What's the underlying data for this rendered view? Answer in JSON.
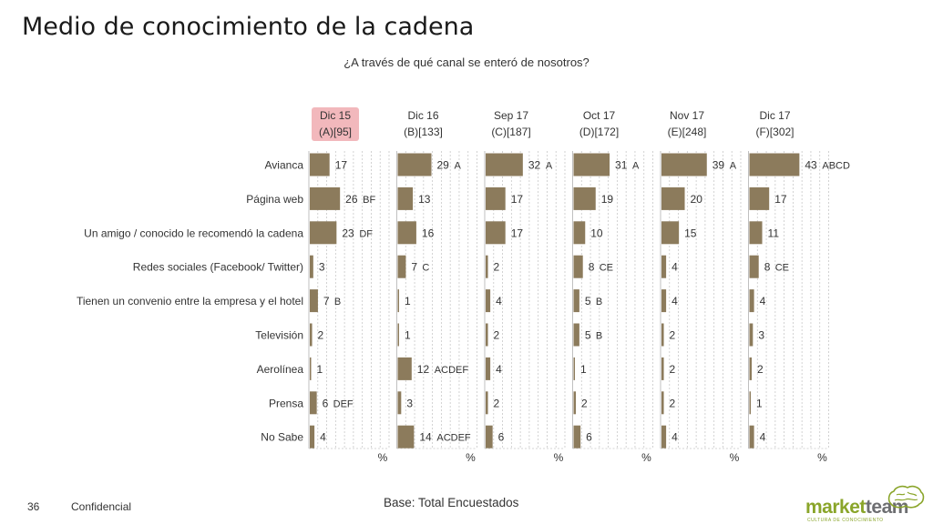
{
  "page": {
    "title": "Medio de conocimiento de la cadena",
    "subtitle": "¿A través de qué canal se enteró de nosotros?",
    "base": "Base: Total Encuestados",
    "page_number": "36",
    "confidential": "Confidencial",
    "logo_market": "market",
    "logo_team": "team",
    "logo_tagline": "CULTURA DE CONOCIMIENTO"
  },
  "colors": {
    "bar": "#8c7b5c",
    "highlight": "#f2b8bc",
    "grid": "#c8c8c8",
    "logo_green": "#8aa52a",
    "logo_gray": "#6d6e71"
  },
  "chart_data": {
    "type": "bar",
    "orientation": "horizontal",
    "panels": 6,
    "categories": [
      "Avianca",
      "Página web",
      "Un amigo / conocido le recomendó la cadena",
      "Redes sociales (Facebook/ Twitter)",
      "Tienen un convenio entre la empresa y el hotel",
      "Televisión",
      "Aerolínea",
      "Prensa",
      "No Sabe"
    ],
    "unit_label": "%",
    "xlim": [
      0,
      100
    ],
    "grid": true,
    "highlighted_series": 0,
    "series": [
      {
        "name": "Dic 15",
        "base": "(A)[95]",
        "values": [
          17,
          26,
          23,
          3,
          7,
          2,
          1,
          6,
          4
        ],
        "sig": [
          "",
          "BF",
          "DF",
          "",
          "B",
          "",
          "",
          "DEF",
          ""
        ]
      },
      {
        "name": "Dic 16",
        "base": "(B)[133]",
        "values": [
          29,
          13,
          16,
          7,
          1,
          1,
          12,
          3,
          14
        ],
        "sig": [
          "A",
          "",
          "",
          "C",
          "",
          "",
          "ACDEF",
          "",
          "ACDEF"
        ]
      },
      {
        "name": "Sep 17",
        "base": "(C)[187]",
        "values": [
          32,
          17,
          17,
          2,
          4,
          2,
          4,
          2,
          6
        ],
        "sig": [
          "A",
          "",
          "",
          "",
          "",
          "",
          "",
          "",
          ""
        ]
      },
      {
        "name": "Oct 17",
        "base": "(D)[172]",
        "values": [
          31,
          19,
          10,
          8,
          5,
          5,
          1,
          2,
          6
        ],
        "sig": [
          "A",
          "",
          "",
          "CE",
          "B",
          "B",
          "",
          "",
          ""
        ]
      },
      {
        "name": "Nov 17",
        "base": "(E)[248]",
        "values": [
          39,
          20,
          15,
          4,
          4,
          2,
          2,
          2,
          4
        ],
        "sig": [
          "A",
          "",
          "",
          "",
          "",
          "",
          "",
          "",
          ""
        ]
      },
      {
        "name": "Dic 17",
        "base": "(F)[302]",
        "values": [
          43,
          17,
          11,
          8,
          4,
          3,
          2,
          1,
          4
        ],
        "sig": [
          "ABCD",
          "",
          "",
          "CE",
          "",
          "",
          "",
          "",
          ""
        ]
      }
    ]
  }
}
